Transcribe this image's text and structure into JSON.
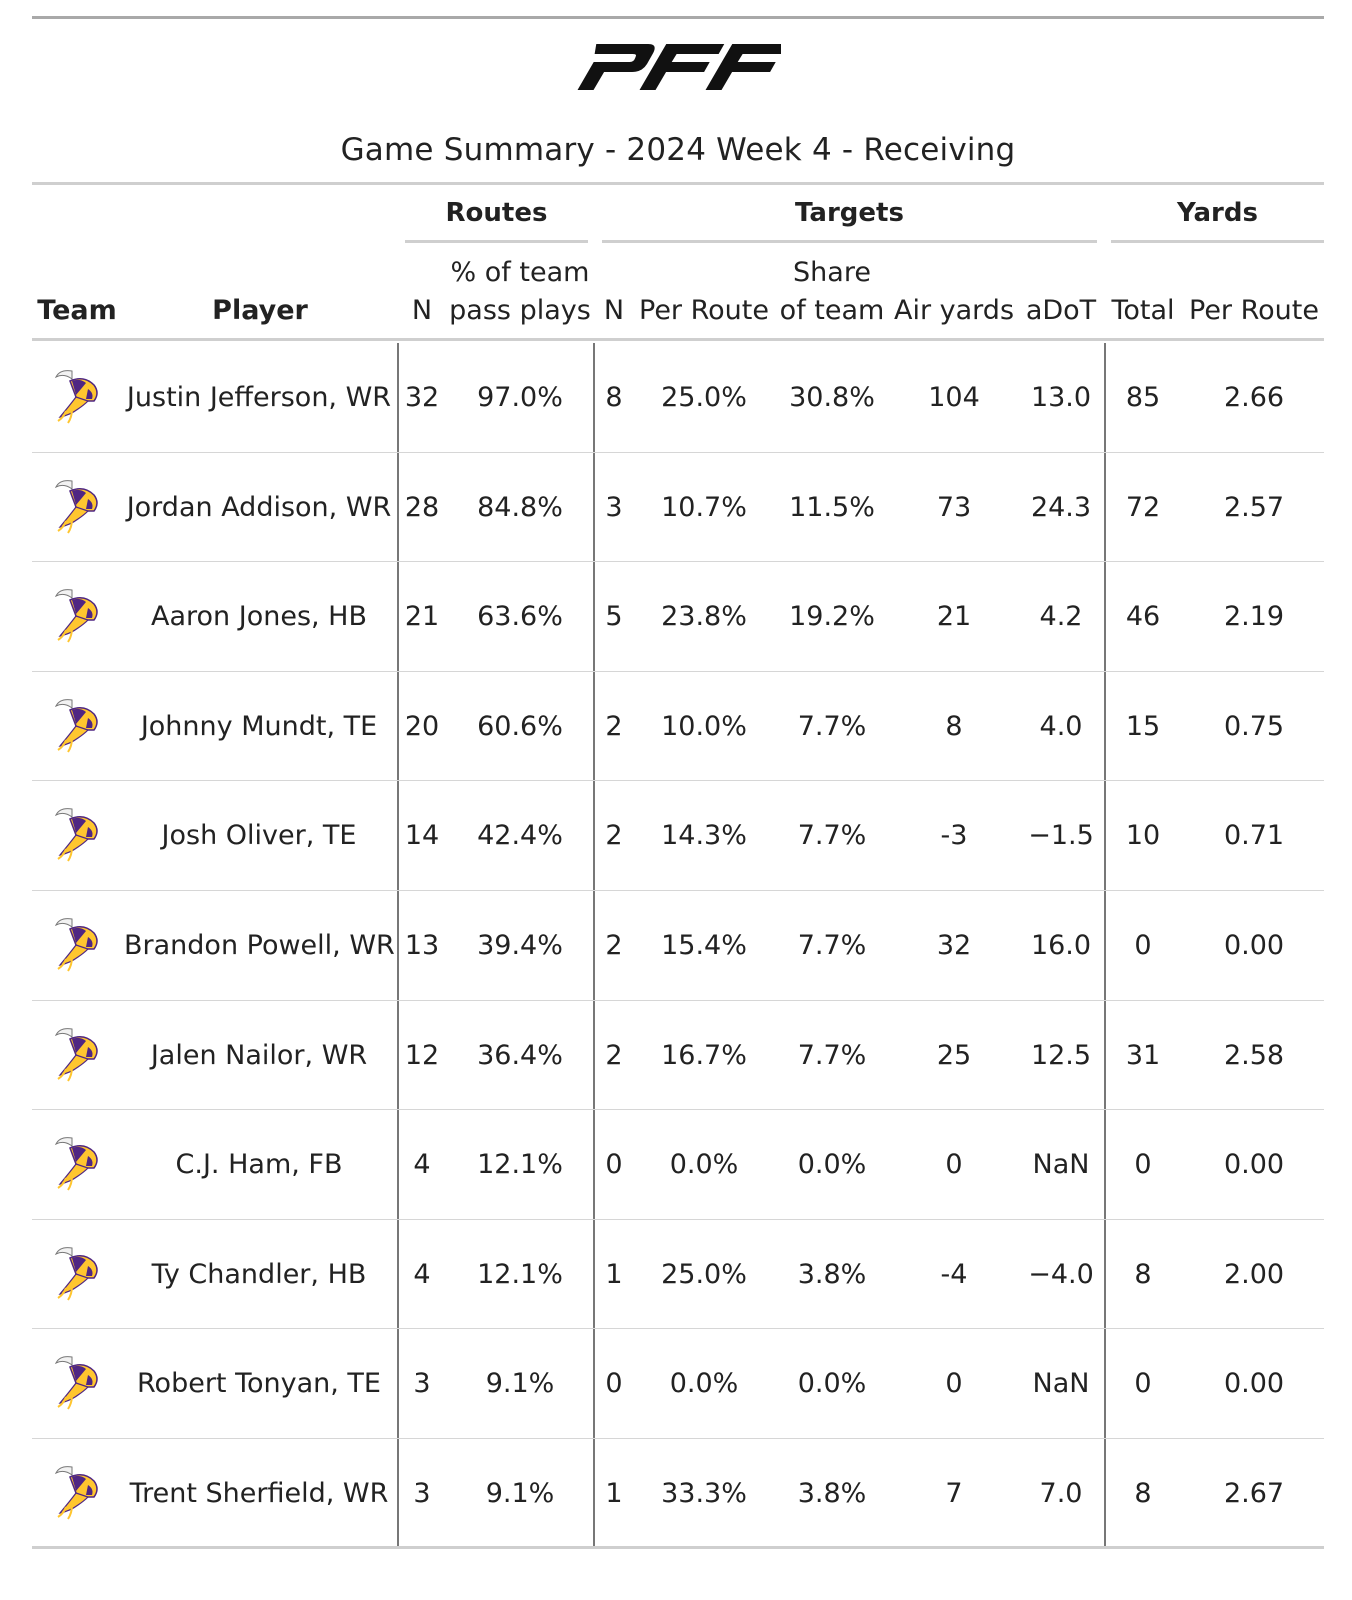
{
  "title": "Game Summary - 2024 Week 4 - Receiving",
  "logo_text": "PFF",
  "team_logo_icon": "vikings-helmet-icon",
  "colors": {
    "logo": "#111111",
    "purple": "#4F2683",
    "gold": "#FFC62F"
  },
  "spanners": {
    "routes": "Routes",
    "targets": "Targets",
    "yards": "Yards"
  },
  "columns": {
    "team": "Team",
    "player": "Player",
    "routes_n": "N",
    "routes_pct_line1": "% of team",
    "routes_pct_line2": "pass plays",
    "targets_n": "N",
    "targets_per_route": "Per Route",
    "share_line1": "Share",
    "share_line2": "of team",
    "air_yards": "Air yards",
    "adot": "aDoT",
    "yards_total": "Total",
    "yards_per_route": "Per Route"
  },
  "rows": [
    {
      "player": "Justin Jefferson, WR",
      "routes_n": "32",
      "routes_pct": "97.0%",
      "targets_n": "8",
      "targets_per_route": "25.0%",
      "share": "30.8%",
      "air_yards": "104",
      "adot": "13.0",
      "yards_total": "85",
      "yards_per_route": "2.66"
    },
    {
      "player": "Jordan Addison, WR",
      "routes_n": "28",
      "routes_pct": "84.8%",
      "targets_n": "3",
      "targets_per_route": "10.7%",
      "share": "11.5%",
      "air_yards": "73",
      "adot": "24.3",
      "yards_total": "72",
      "yards_per_route": "2.57"
    },
    {
      "player": "Aaron Jones, HB",
      "routes_n": "21",
      "routes_pct": "63.6%",
      "targets_n": "5",
      "targets_per_route": "23.8%",
      "share": "19.2%",
      "air_yards": "21",
      "adot": "4.2",
      "yards_total": "46",
      "yards_per_route": "2.19"
    },
    {
      "player": "Johnny Mundt, TE",
      "routes_n": "20",
      "routes_pct": "60.6%",
      "targets_n": "2",
      "targets_per_route": "10.0%",
      "share": "7.7%",
      "air_yards": "8",
      "adot": "4.0",
      "yards_total": "15",
      "yards_per_route": "0.75"
    },
    {
      "player": "Josh Oliver, TE",
      "routes_n": "14",
      "routes_pct": "42.4%",
      "targets_n": "2",
      "targets_per_route": "14.3%",
      "share": "7.7%",
      "air_yards": "-3",
      "adot": "−1.5",
      "yards_total": "10",
      "yards_per_route": "0.71"
    },
    {
      "player": "Brandon Powell, WR",
      "routes_n": "13",
      "routes_pct": "39.4%",
      "targets_n": "2",
      "targets_per_route": "15.4%",
      "share": "7.7%",
      "air_yards": "32",
      "adot": "16.0",
      "yards_total": "0",
      "yards_per_route": "0.00"
    },
    {
      "player": "Jalen Nailor, WR",
      "routes_n": "12",
      "routes_pct": "36.4%",
      "targets_n": "2",
      "targets_per_route": "16.7%",
      "share": "7.7%",
      "air_yards": "25",
      "adot": "12.5",
      "yards_total": "31",
      "yards_per_route": "2.58"
    },
    {
      "player": "C.J. Ham, FB",
      "routes_n": "4",
      "routes_pct": "12.1%",
      "targets_n": "0",
      "targets_per_route": "0.0%",
      "share": "0.0%",
      "air_yards": "0",
      "adot": "NaN",
      "yards_total": "0",
      "yards_per_route": "0.00"
    },
    {
      "player": "Ty Chandler, HB",
      "routes_n": "4",
      "routes_pct": "12.1%",
      "targets_n": "1",
      "targets_per_route": "25.0%",
      "share": "3.8%",
      "air_yards": "-4",
      "adot": "−4.0",
      "yards_total": "8",
      "yards_per_route": "2.00"
    },
    {
      "player": "Robert Tonyan, TE",
      "routes_n": "3",
      "routes_pct": "9.1%",
      "targets_n": "0",
      "targets_per_route": "0.0%",
      "share": "0.0%",
      "air_yards": "0",
      "adot": "NaN",
      "yards_total": "0",
      "yards_per_route": "0.00"
    },
    {
      "player": "Trent Sherfield, WR",
      "routes_n": "3",
      "routes_pct": "9.1%",
      "targets_n": "1",
      "targets_per_route": "33.3%",
      "share": "3.8%",
      "air_yards": "7",
      "adot": "7.0",
      "yards_total": "8",
      "yards_per_route": "2.67"
    }
  ]
}
